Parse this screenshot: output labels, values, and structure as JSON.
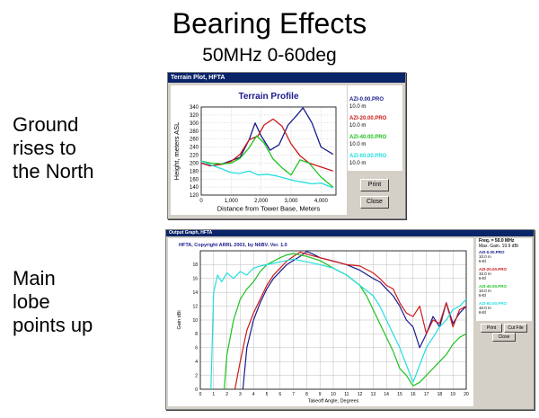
{
  "slide": {
    "title": "Bearing Effects",
    "subtitle": "50MHz 0-60deg",
    "side_top": [
      "Ground",
      "rises to",
      "the North"
    ],
    "side_bottom": [
      "Main",
      "lobe",
      "points up"
    ]
  },
  "terrain_window": {
    "title": "Terrain Plot, HFTA",
    "print_label": "Print",
    "close_label": "Close",
    "legend": [
      {
        "name": "AZI-0.00.PRO",
        "height": "10.0 m",
        "color": "#1a1a8c"
      },
      {
        "name": "AZI-20.00.PRO",
        "height": "10.0 m",
        "color": "#cc1a1a"
      },
      {
        "name": "AZI-40.00.PRO",
        "height": "10.0 m",
        "color": "#1ec21e"
      },
      {
        "name": "AZI-60.00.PRO",
        "height": "10.0 m",
        "color": "#22dede"
      }
    ]
  },
  "output_window": {
    "title": "Output Graph, HFTA",
    "header_text": "HFTA, Copyright ARRL 2003, by N6BV. Ver. 1.0",
    "freq_label": "Freq. = 50.0 MHz",
    "max_gain_label": "Max. Gain. 19.9 dBi",
    "print_label": "Print",
    "cut_file_label": "Cut File",
    "close_label": "Close",
    "legend": [
      {
        "name": "AZI-0.00.PRO",
        "height": "10.0 m",
        "extra": "6-El",
        "color": "#1a1a8c"
      },
      {
        "name": "AZI-20.00.PRO",
        "height": "10.0 m",
        "extra": "6-El",
        "color": "#cc1a1a"
      },
      {
        "name": "AZI-40.00.PRO",
        "height": "10.0 m",
        "extra": "6-El",
        "color": "#1ec21e"
      },
      {
        "name": "AZI-60.00.PRO",
        "height": "10.0 m",
        "extra": "6-El",
        "color": "#22dede"
      }
    ]
  },
  "chart_data": [
    {
      "type": "line",
      "title": "Terrain Profile",
      "xlabel": "Distance from Tower Base, Meters",
      "ylabel": "Height, meters ASL",
      "xlim": [
        0,
        4500
      ],
      "ylim": [
        120,
        340
      ],
      "xticks": [
        "0",
        "1,000",
        "2,000",
        "3,000",
        "4,000"
      ],
      "xtick_values": [
        0,
        1000,
        2000,
        3000,
        4000
      ],
      "yticks": [
        120,
        140,
        160,
        180,
        200,
        220,
        240,
        260,
        280,
        300,
        320,
        340
      ],
      "grid": true,
      "series": [
        {
          "name": "AZI-0.00.PRO",
          "color": "#1a1a8c",
          "x": [
            0,
            300,
            700,
            1000,
            1300,
            1600,
            1800,
            2000,
            2300,
            2600,
            2900,
            3200,
            3400,
            3700,
            4000,
            4400
          ],
          "y": [
            200,
            193,
            198,
            206,
            214,
            258,
            300,
            268,
            232,
            246,
            295,
            320,
            338,
            300,
            240,
            222
          ]
        },
        {
          "name": "AZI-20.00.PRO",
          "color": "#cc1a1a",
          "x": [
            0,
            300,
            700,
            1000,
            1300,
            1600,
            1900,
            2100,
            2400,
            2700,
            3000,
            3300,
            3600,
            4000,
            4400
          ],
          "y": [
            200,
            193,
            197,
            204,
            222,
            258,
            268,
            295,
            310,
            292,
            248,
            218,
            200,
            190,
            180
          ]
        },
        {
          "name": "AZI-40.00.PRO",
          "color": "#1ec21e",
          "x": [
            0,
            300,
            700,
            1000,
            1300,
            1600,
            1850,
            2100,
            2400,
            2700,
            3000,
            3300,
            3600,
            4000,
            4400
          ],
          "y": [
            205,
            200,
            198,
            200,
            212,
            238,
            268,
            250,
            210,
            188,
            170,
            208,
            200,
            165,
            140
          ]
        },
        {
          "name": "AZI-60.00.PRO",
          "color": "#22dede",
          "x": [
            0,
            300,
            700,
            1000,
            1300,
            1600,
            1900,
            2200,
            2500,
            2800,
            3100,
            3400,
            3700,
            4000,
            4400
          ],
          "y": [
            205,
            196,
            185,
            176,
            174,
            180,
            170,
            172,
            168,
            162,
            156,
            152,
            148,
            150,
            138
          ]
        }
      ]
    },
    {
      "type": "line",
      "title": "",
      "xlabel": "Takeoff Angle, Degrees",
      "ylabel": "Gain dBi",
      "xlim": [
        0,
        20
      ],
      "ylim": [
        0,
        20
      ],
      "xticks": [
        "0",
        "1",
        "2",
        "3",
        "4",
        "5",
        "6",
        "7",
        "8",
        "9",
        "10",
        "11",
        "12",
        "13",
        "14",
        "15",
        "16",
        "17",
        "18",
        "19",
        "20"
      ],
      "yticks": [
        0,
        2,
        4,
        6,
        8,
        10,
        12,
        14,
        16,
        18
      ],
      "grid": true,
      "series": [
        {
          "name": "AZI-0.00.PRO",
          "color": "#1a1a8c",
          "x": [
            3.2,
            3.5,
            4,
            4.5,
            5,
            5.5,
            6,
            6.5,
            7,
            7.5,
            8,
            8.5,
            9,
            10,
            11,
            12,
            13,
            13.5,
            14,
            14.5,
            15,
            15.5,
            16,
            16.5,
            17,
            17.5,
            18,
            18.5,
            19,
            19.5,
            20
          ],
          "y": [
            0,
            6,
            10,
            12.5,
            14.5,
            16,
            17,
            18,
            18.6,
            19.2,
            19.9,
            19.5,
            19,
            18.5,
            18,
            17.2,
            16,
            15.5,
            14.5,
            13.5,
            12,
            10,
            9,
            6,
            8,
            10.5,
            9,
            12.5,
            9.5,
            11,
            12
          ]
        },
        {
          "name": "AZI-20.00.PRO",
          "color": "#cc1a1a",
          "x": [
            2.6,
            3,
            3.5,
            4,
            4.5,
            5,
            5.5,
            6,
            6.5,
            7,
            7.5,
            8,
            9,
            10,
            11,
            12,
            13,
            13.5,
            14,
            14.5,
            15,
            15.5,
            16,
            16.5,
            17,
            17.5,
            18,
            18.5,
            19,
            19.5,
            20
          ],
          "y": [
            0,
            4,
            8.5,
            11,
            13,
            15,
            16.5,
            17.5,
            18.5,
            19.2,
            19.8,
            19.5,
            19,
            18.5,
            18,
            17.8,
            16.8,
            16,
            15,
            14.5,
            12.5,
            11,
            10.5,
            12,
            8,
            10,
            9.5,
            12.5,
            9,
            11.5,
            12
          ]
        },
        {
          "name": "AZI-40.00.PRO",
          "color": "#1ec21e",
          "x": [
            1.8,
            2,
            2.5,
            3,
            3.5,
            4,
            4.5,
            5,
            5.5,
            6,
            6.5,
            7,
            8,
            9,
            10,
            11,
            12,
            12.5,
            13,
            13.5,
            14,
            14.5,
            15,
            15.5,
            16,
            16.5,
            17,
            17.5,
            18,
            18.5,
            19,
            19.5,
            20
          ],
          "y": [
            0,
            5,
            10,
            13,
            14.5,
            15.5,
            17,
            18,
            18.5,
            19,
            19.4,
            19.6,
            19.2,
            18.6,
            17.5,
            16.5,
            15,
            13.5,
            11.5,
            9.5,
            7.5,
            5.5,
            3,
            2,
            0.5,
            1,
            2,
            3,
            4,
            5,
            6.5,
            7.5,
            8
          ]
        },
        {
          "name": "AZI-60.00.PRO",
          "color": "#22dede",
          "x": [
            0.8,
            1,
            1.3,
            1.6,
            2,
            2.5,
            3,
            3.5,
            4,
            4.5,
            5,
            5.5,
            6,
            6.5,
            7,
            8,
            9,
            10,
            11,
            12,
            13,
            13.5,
            14,
            14.5,
            15,
            15.5,
            16,
            16.5,
            17,
            17.5,
            18,
            18.5,
            19,
            19.5,
            20
          ],
          "y": [
            0,
            14,
            16.5,
            15.5,
            16.8,
            16,
            17,
            16.5,
            17.5,
            17.8,
            18,
            18.2,
            18.4,
            18.6,
            18.8,
            18.4,
            18,
            17.5,
            16.5,
            15,
            13.5,
            12,
            10,
            8,
            6,
            3.5,
            1,
            3.5,
            6,
            7.5,
            9,
            10,
            11.5,
            12,
            13
          ]
        }
      ]
    }
  ]
}
